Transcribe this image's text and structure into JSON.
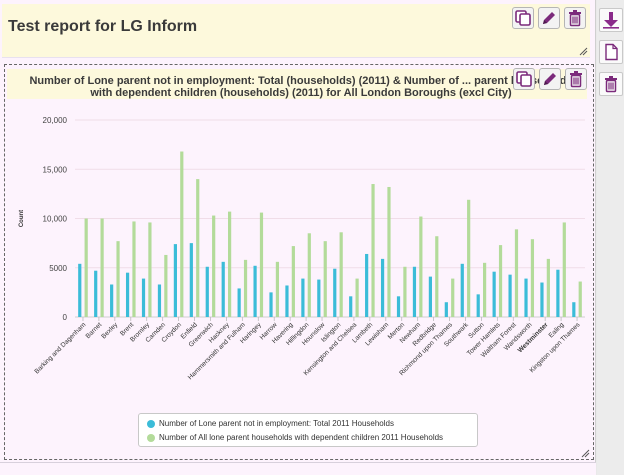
{
  "report": {
    "title": "Test report for LG Inform"
  },
  "icons": {
    "copy": "copy-icon",
    "edit": "pencil-icon",
    "delete": "trash-icon",
    "download": "arrow-down-icon",
    "new_page": "document-icon"
  },
  "colors": {
    "accent": "#7b2a7b",
    "series1": "#3bbcd8",
    "series2": "#b3db9a"
  },
  "chart_data": {
    "type": "bar",
    "title": "Number of Lone parent not in employment: Total (households) (2011) & Number of All lone parent households with dependent children (households) (2011) for All London Boroughs (excl City)",
    "title_visible": "Number of Lone parent not in employment: Total (households) (2011) & Number of ... parent households with dependent children (households) (2011) for All London Boroughs (excl City)",
    "ylabel": "Count",
    "xlabel": "",
    "ylim": [
      0,
      20000
    ],
    "yticks": [
      "0",
      "5000",
      "10,000",
      "15,000",
      "20,000"
    ],
    "grid": true,
    "legend_position": "bottom",
    "categories": [
      "Barking and Dagenham",
      "Barnet",
      "Bexley",
      "Brent",
      "Bromley",
      "Camden",
      "Croydon",
      "Enfield",
      "Greenwich",
      "Hackney",
      "Hammersmith and Fulham",
      "Haringey",
      "Harrow",
      "Havering",
      "Hillingdon",
      "Hounslow",
      "Islington",
      "Kensington and Chelsea",
      "Lambeth",
      "Lewisham",
      "Merton",
      "Newham",
      "Redbridge",
      "Richmond upon Thames",
      "Southwark",
      "Sutton",
      "Tower Hamlets",
      "Waltham Forest",
      "Wandsworth",
      "Westminster",
      "Ealing",
      "Kingston upon Thames"
    ],
    "series": [
      {
        "name": "Number of Lone parent not in employment: Total 2011 Households",
        "values": [
          5400,
          4700,
          3300,
          4500,
          3900,
          3300,
          7400,
          7500,
          5100,
          5600,
          2900,
          5200,
          2500,
          3200,
          3900,
          3800,
          4900,
          2100,
          6400,
          5900,
          2100,
          5100,
          4100,
          1500,
          5400,
          2300,
          4600,
          4300,
          3900,
          3500,
          4800,
          1500
        ]
      },
      {
        "name": "Number of All lone parent households with dependent children 2011 Households",
        "values": [
          10000,
          10000,
          7700,
          9700,
          9600,
          6300,
          16800,
          14000,
          10300,
          10700,
          5800,
          10600,
          5600,
          7200,
          8500,
          7700,
          8600,
          3900,
          13500,
          13200,
          5100,
          10200,
          8200,
          3900,
          11900,
          5500,
          7300,
          8900,
          7900,
          5900,
          9600,
          3600
        ]
      }
    ]
  }
}
